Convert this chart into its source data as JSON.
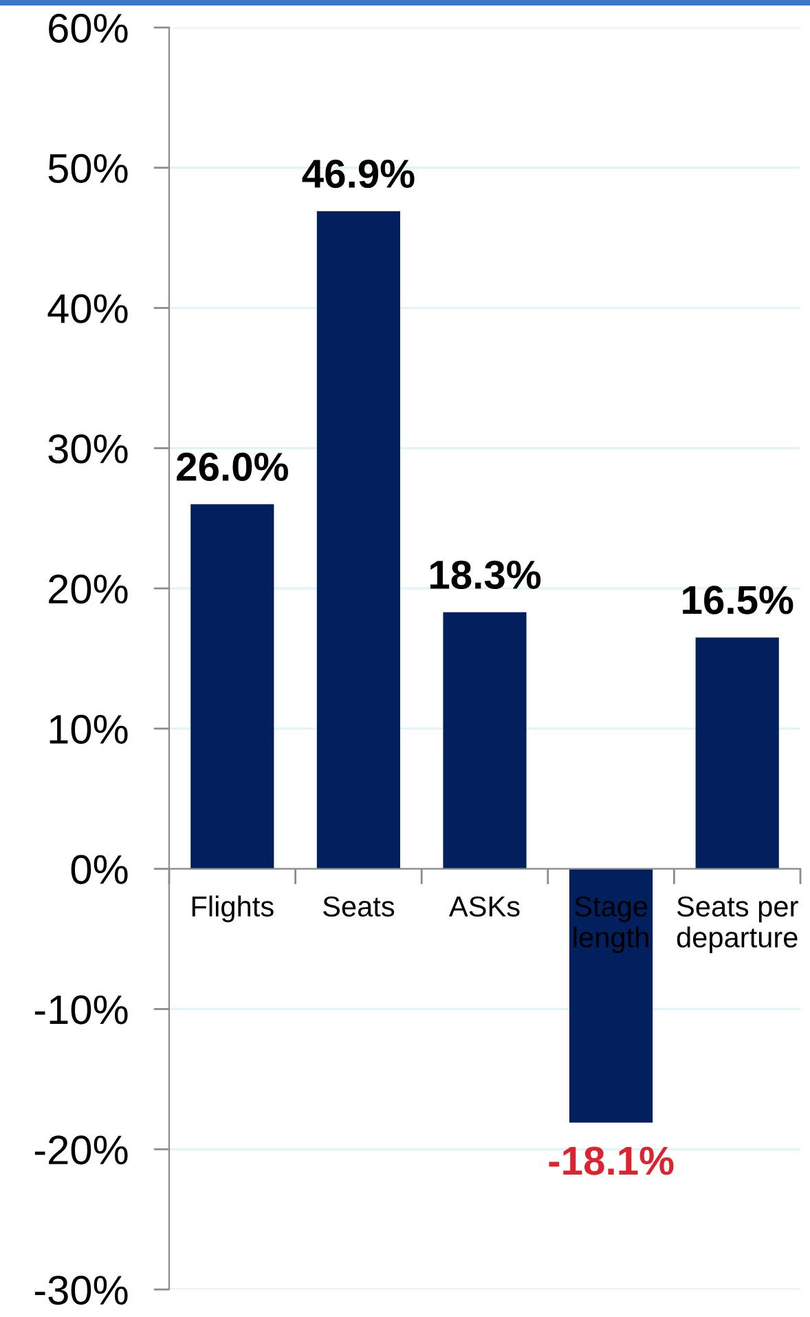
{
  "chart_data": {
    "type": "bar",
    "categories": [
      "Flights",
      "Seats",
      "ASKs",
      "Stage length",
      "Seats per departure"
    ],
    "values": [
      26.0,
      46.9,
      18.3,
      -18.1,
      16.5
    ],
    "color": "#021f5e",
    "value_labels": [
      "26.0%",
      "46.9%",
      "18.3%",
      "-18.1%",
      "16.5%"
    ],
    "ylim": [
      -30,
      60
    ],
    "yticks": [
      {
        "value": -30,
        "label": "-30%"
      },
      {
        "value": -20,
        "label": "-20%"
      },
      {
        "value": -10,
        "label": "-10%"
      },
      {
        "value": 0,
        "label": "0%"
      },
      {
        "value": 10,
        "label": "10%"
      },
      {
        "value": 20,
        "label": "20%"
      },
      {
        "value": 30,
        "label": "30%"
      },
      {
        "value": 40,
        "label": "40%"
      },
      {
        "value": 50,
        "label": "50%"
      },
      {
        "value": 60,
        "label": "60%"
      }
    ],
    "grid": "y"
  }
}
